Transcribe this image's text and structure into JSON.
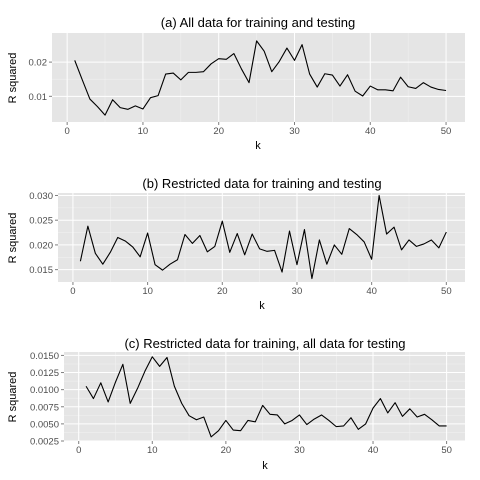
{
  "chart_data": [
    {
      "type": "line",
      "title": "(a) All data for training and testing",
      "xlabel": "k",
      "ylabel": "R squared",
      "xlim": [
        -2,
        52.5
      ],
      "ylim": [
        0.0025,
        0.0285
      ],
      "xticks": [
        0,
        10,
        20,
        30,
        40,
        50
      ],
      "yticks": [
        0.01,
        0.02
      ],
      "ytick_labels": [
        "0.01",
        "0.02"
      ],
      "grid": true,
      "line_color": "#000000",
      "x": [
        1,
        2,
        3,
        4,
        5,
        6,
        7,
        8,
        9,
        10,
        11,
        12,
        13,
        14,
        15,
        16,
        17,
        18,
        19,
        20,
        21,
        22,
        23,
        24,
        25,
        26,
        27,
        28,
        29,
        30,
        31,
        32,
        33,
        34,
        35,
        36,
        37,
        38,
        39,
        40,
        41,
        42,
        43,
        44,
        45,
        46,
        47,
        48,
        49,
        50
      ],
      "values": [
        0.0205,
        0.0148,
        0.0092,
        0.007,
        0.0045,
        0.009,
        0.0067,
        0.0062,
        0.0072,
        0.0063,
        0.0096,
        0.0102,
        0.0165,
        0.0168,
        0.0148,
        0.017,
        0.017,
        0.0172,
        0.0195,
        0.021,
        0.0208,
        0.0225,
        0.018,
        0.014,
        0.0262,
        0.0232,
        0.0172,
        0.0202,
        0.0241,
        0.0205,
        0.0251,
        0.0165,
        0.0127,
        0.0166,
        0.0162,
        0.013,
        0.0163,
        0.0115,
        0.0101,
        0.013,
        0.0119,
        0.0119,
        0.0116,
        0.0156,
        0.0128,
        0.0123,
        0.014,
        0.0127,
        0.012,
        0.0117
      ]
    },
    {
      "type": "line",
      "title": "(b) Restricted data for training and testing",
      "xlabel": "k",
      "ylabel": "R squared",
      "xlim": [
        -2,
        52.5
      ],
      "ylim": [
        0.0125,
        0.0305
      ],
      "xticks": [
        0,
        10,
        20,
        30,
        40,
        50
      ],
      "yticks": [
        0.015,
        0.02,
        0.025,
        0.03
      ],
      "ytick_labels": [
        "0.015",
        "0.020",
        "0.025",
        "0.030"
      ],
      "grid": true,
      "line_color": "#000000",
      "x": [
        1,
        2,
        3,
        4,
        5,
        6,
        7,
        8,
        9,
        10,
        11,
        12,
        13,
        14,
        15,
        16,
        17,
        18,
        19,
        20,
        21,
        22,
        23,
        24,
        25,
        26,
        27,
        28,
        29,
        30,
        31,
        32,
        33,
        34,
        35,
        36,
        37,
        38,
        39,
        40,
        41,
        42,
        43,
        44,
        45,
        46,
        47,
        48,
        49,
        50
      ],
      "values": [
        0.0167,
        0.0238,
        0.0183,
        0.0161,
        0.0185,
        0.0215,
        0.0208,
        0.0196,
        0.0176,
        0.0224,
        0.016,
        0.0149,
        0.0161,
        0.017,
        0.0221,
        0.0203,
        0.0219,
        0.0186,
        0.0197,
        0.0248,
        0.0185,
        0.0223,
        0.018,
        0.0222,
        0.0192,
        0.0187,
        0.0189,
        0.0145,
        0.0228,
        0.016,
        0.0231,
        0.0132,
        0.021,
        0.0161,
        0.02,
        0.0181,
        0.0233,
        0.0221,
        0.0206,
        0.0171,
        0.03,
        0.0222,
        0.0236,
        0.019,
        0.021,
        0.0197,
        0.0202,
        0.021,
        0.0194,
        0.0226
      ]
    },
    {
      "type": "line",
      "title": "(c) Restricted data for training, all data for testing",
      "xlabel": "k",
      "ylabel": "R squared",
      "xlim": [
        -2,
        52.5
      ],
      "ylim": [
        0.0025,
        0.0155
      ],
      "xticks": [
        0,
        10,
        20,
        30,
        40,
        50
      ],
      "yticks": [
        0.0025,
        0.005,
        0.0075,
        0.01,
        0.0125,
        0.015
      ],
      "ytick_labels": [
        "0.0025",
        "0.0050",
        "0.0075",
        "0.0100",
        "0.0125",
        "0.0150"
      ],
      "grid": true,
      "line_color": "#000000",
      "x": [
        1,
        2,
        3,
        4,
        5,
        6,
        7,
        8,
        9,
        10,
        11,
        12,
        13,
        14,
        15,
        16,
        17,
        18,
        19,
        20,
        21,
        22,
        23,
        24,
        25,
        26,
        27,
        28,
        29,
        30,
        31,
        32,
        33,
        34,
        35,
        36,
        37,
        38,
        39,
        40,
        41,
        42,
        43,
        44,
        45,
        46,
        47,
        48,
        49,
        50
      ],
      "values": [
        0.0105,
        0.0087,
        0.011,
        0.0082,
        0.0111,
        0.0137,
        0.008,
        0.0102,
        0.0127,
        0.0148,
        0.0134,
        0.0147,
        0.0105,
        0.008,
        0.0062,
        0.0056,
        0.006,
        0.0031,
        0.004,
        0.0055,
        0.0041,
        0.004,
        0.0055,
        0.0053,
        0.0077,
        0.0064,
        0.0063,
        0.005,
        0.0055,
        0.0063,
        0.0049,
        0.0057,
        0.0063,
        0.0055,
        0.0046,
        0.0047,
        0.0059,
        0.0042,
        0.005,
        0.0073,
        0.0087,
        0.0066,
        0.0081,
        0.0061,
        0.0072,
        0.006,
        0.0064,
        0.0056,
        0.0047,
        0.0047
      ]
    }
  ]
}
